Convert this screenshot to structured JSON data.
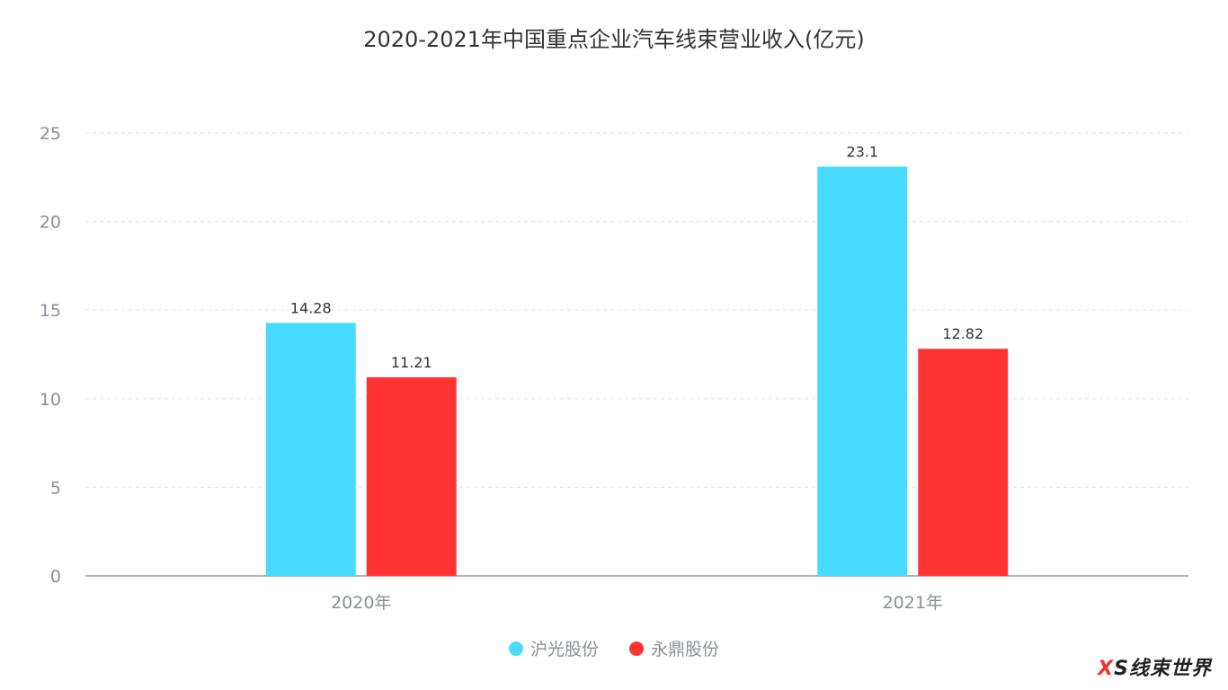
{
  "chart_data": {
    "type": "bar",
    "title": "2020-2021年中国重点企业汽车线束营业收入(亿元)",
    "categories": [
      "2020年",
      "2021年"
    ],
    "series": [
      {
        "name": "沪光股份",
        "color": "#48dbfd",
        "values": [
          14.28,
          23.1
        ],
        "labels": [
          "14.28",
          "23.1"
        ]
      },
      {
        "name": "永鼎股份",
        "color": "#ff3333",
        "values": [
          11.21,
          12.82
        ],
        "labels": [
          "11.21",
          "12.82"
        ]
      }
    ],
    "ylim": [
      0,
      25
    ],
    "yticks": [
      "0",
      "5",
      "10",
      "15",
      "20",
      "25"
    ],
    "grid": true,
    "legend_position": "bottom",
    "xlabel": "",
    "ylabel": ""
  },
  "watermark": "XS线束世界"
}
